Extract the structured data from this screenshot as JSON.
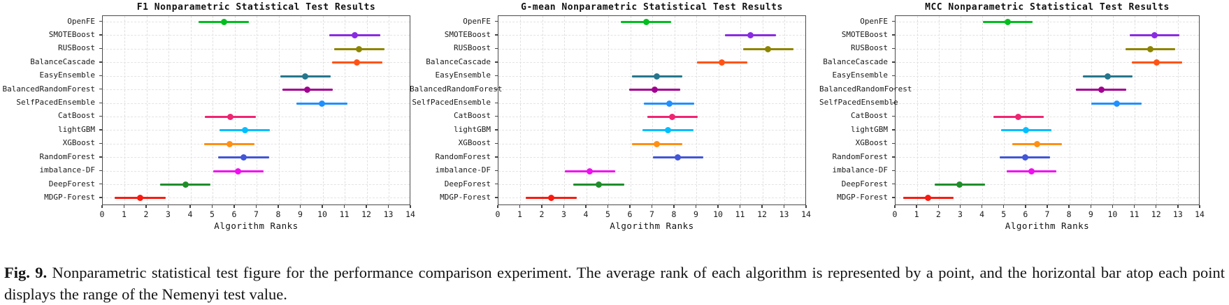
{
  "figure": {
    "caption_label": "Fig. 9.",
    "caption_text": "Nonparametric statistical test figure for the performance comparison experiment. The average rank of each algorithm is represented by a point, and the horizontal bar atop each point displays the range of the Nemenyi test value."
  },
  "algorithm_colors": [
    "#00be1e",
    "#8a2be2",
    "#8d8500",
    "#ff5316",
    "#26778c",
    "#a10090",
    "#1e90ff",
    "#ef2572",
    "#00bfff",
    "#ff9014",
    "#4156d8",
    "#ef0fef",
    "#1f8e2a",
    "#fa1a10"
  ],
  "chart_data": [
    {
      "type": "scatter",
      "subtype": "horizontal-errorbar",
      "title": "F1 Nonparametric Statistical Test Results",
      "xlabel": "Algorithm Ranks",
      "xlim": [
        0,
        14
      ],
      "xticks": [
        0,
        1,
        2,
        3,
        4,
        5,
        6,
        7,
        8,
        9,
        10,
        11,
        12,
        13,
        14
      ],
      "grid": true,
      "categories": [
        "OpenFE",
        "SMOTEBoost",
        "RUSBoost",
        "BalanceCascade",
        "EasyEnsemble",
        "BalancedRandomForest",
        "SelfPacedEnsemble",
        "CatBoost",
        "lightGBM",
        "XGBoost",
        "RandomForest",
        "imbalance-DF",
        "DeepForest",
        "MDGP-Forest"
      ],
      "avg_ranks": [
        5.5,
        11.45,
        11.65,
        11.55,
        9.2,
        9.3,
        9.95,
        5.8,
        6.45,
        5.75,
        6.4,
        6.15,
        3.75,
        1.7
      ],
      "nemenyi_halfwidth": 1.15
    },
    {
      "type": "scatter",
      "subtype": "horizontal-errorbar",
      "title": "G-mean Nonparametric Statistical Test Results",
      "xlabel": "Algorithm Ranks",
      "xlim": [
        0,
        14
      ],
      "xticks": [
        0,
        1,
        2,
        3,
        4,
        5,
        6,
        7,
        8,
        9,
        10,
        11,
        12,
        13,
        14
      ],
      "grid": true,
      "categories": [
        "OpenFE",
        "SMOTEBoost",
        "RUSBoost",
        "BalanceCascade",
        "EasyEnsemble",
        "BalancedRandomForest",
        "SelfPacedEnsemble",
        "CatBoost",
        "lightGBM",
        "XGBoost",
        "RandomForest",
        "imbalance-DF",
        "DeepForest",
        "MDGP-Forest"
      ],
      "avg_ranks": [
        6.7,
        11.45,
        12.25,
        10.15,
        7.2,
        7.1,
        7.75,
        7.9,
        7.7,
        7.2,
        8.15,
        4.15,
        4.55,
        2.4
      ],
      "nemenyi_halfwidth": 1.15
    },
    {
      "type": "scatter",
      "subtype": "horizontal-errorbar",
      "title": "MCC Nonparametric Statistical Test Results",
      "xlabel": "Algorithm Ranks",
      "xlim": [
        0,
        14
      ],
      "xticks": [
        0,
        1,
        2,
        3,
        4,
        5,
        6,
        7,
        8,
        9,
        10,
        11,
        12,
        13,
        14
      ],
      "grid": true,
      "categories": [
        "OpenFE",
        "SMOTEBoost",
        "RUSBoost",
        "BalanceCascade",
        "EasyEnsemble",
        "BalancedRandomForest",
        "SelfPacedEnsemble",
        "CatBoost",
        "lightGBM",
        "XGBoost",
        "RandomForest",
        "imbalance-DF",
        "DeepForest",
        "MDGP-Forest"
      ],
      "avg_ranks": [
        5.15,
        11.9,
        11.7,
        12.0,
        9.75,
        9.45,
        10.15,
        5.65,
        6.0,
        6.5,
        5.95,
        6.25,
        2.95,
        1.5
      ],
      "nemenyi_halfwidth": 1.15
    }
  ]
}
